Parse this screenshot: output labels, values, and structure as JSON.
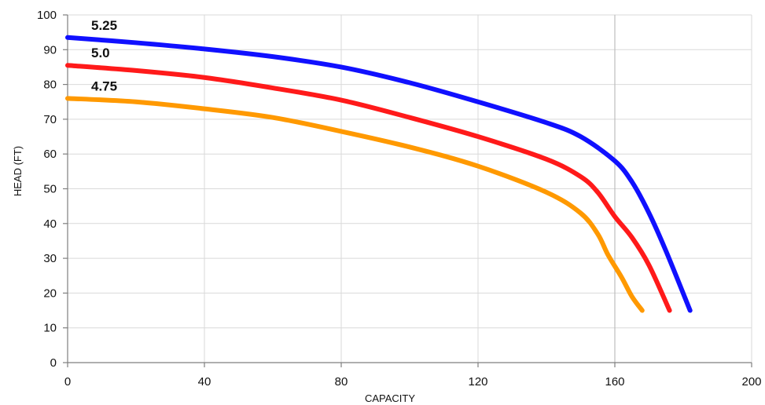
{
  "chart_data": {
    "type": "line",
    "title": "",
    "xlabel": "CAPACITY",
    "ylabel": "HEAD (FT)",
    "xlim": [
      0,
      200
    ],
    "ylim": [
      0,
      100
    ],
    "xticks": [
      0,
      40,
      80,
      120,
      160,
      200
    ],
    "yticks": [
      0,
      10,
      20,
      30,
      40,
      50,
      60,
      70,
      80,
      90,
      100
    ],
    "x_tick_labels": [
      "0",
      "40",
      "80",
      "120",
      "160",
      "200"
    ],
    "y_tick_labels": [
      "0",
      "10",
      "20",
      "30",
      "40",
      "50",
      "60",
      "70",
      "80",
      "90",
      "100"
    ],
    "grid": true,
    "legend": "none",
    "series": [
      {
        "name": "5.25",
        "color": "#1010ff",
        "x": [
          0,
          20,
          40,
          60,
          80,
          100,
          120,
          140,
          150,
          160,
          165,
          170,
          175,
          182
        ],
        "y": [
          93.5,
          92,
          90.2,
          88,
          85,
          80.5,
          75,
          69,
          65,
          58,
          52,
          43,
          32,
          15
        ]
      },
      {
        "name": "5.0",
        "color": "#ff1a1a",
        "x": [
          0,
          20,
          40,
          60,
          80,
          100,
          120,
          140,
          150,
          155,
          160,
          165,
          170,
          176
        ],
        "y": [
          85.5,
          84,
          82,
          79,
          75.5,
          70.5,
          65,
          58.5,
          53.5,
          49,
          42,
          36,
          28,
          15
        ]
      },
      {
        "name": "4.75",
        "color": "#ff9900",
        "x": [
          0,
          20,
          40,
          60,
          80,
          100,
          120,
          140,
          150,
          155,
          158,
          162,
          165,
          168
        ],
        "y": [
          76,
          75,
          73,
          70.5,
          66.5,
          62,
          56.5,
          49,
          43,
          37,
          31,
          24.5,
          19,
          15
        ]
      }
    ]
  }
}
